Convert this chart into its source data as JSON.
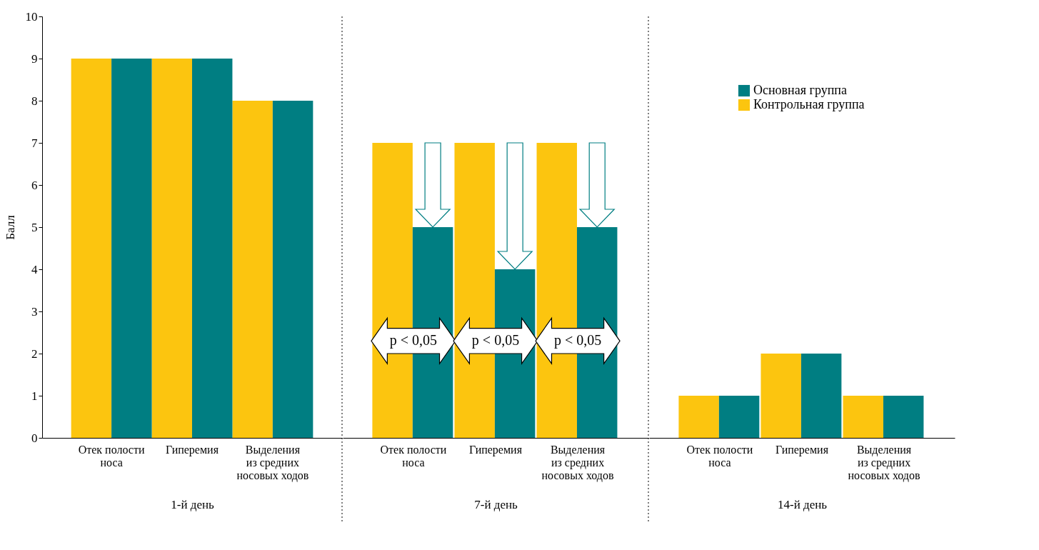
{
  "chart_data": [
    {
      "type": "bar",
      "xlabel": "1-й день",
      "ylabel": "Балл",
      "categories": [
        "Отек полости\nноса",
        "Гиперемия",
        "Выделения\nиз средних\nносовых ходов"
      ],
      "series": [
        {
          "color": "#fcc50f",
          "values": [
            9,
            9,
            8
          ]
        },
        {
          "color": "#007e82",
          "values": [
            9,
            9,
            8
          ]
        }
      ],
      "ylim": [
        0,
        10
      ],
      "yticks": [
        0,
        1,
        2,
        3,
        4,
        5,
        6,
        7,
        8,
        9,
        10
      ],
      "grid": false
    },
    {
      "type": "bar",
      "xlabel": "7-й день",
      "categories": [
        "Отек полости\nноса",
        "Гиперемия",
        "Выделения\nиз средних\nносовых ходов"
      ],
      "series": [
        {
          "color": "#fcc50f",
          "values": [
            7,
            7,
            7
          ]
        },
        {
          "color": "#007e82",
          "values": [
            5,
            4,
            5
          ]
        }
      ],
      "ylim": [
        0,
        10
      ],
      "yticks": [
        0,
        1,
        2,
        3,
        4,
        5,
        6,
        7,
        8,
        9,
        10
      ],
      "tick_labels": "x",
      "grid": false,
      "annotations": [
        {
          "text": "p < 0,05",
          "x": "Отек полости\nноса",
          "y": 2.3
        },
        {
          "text": "p < 0,05",
          "x": "Гиперемия",
          "y": 2.3
        },
        {
          "text": "p < 0,05",
          "x": "Выделения\nиз средних\nносовых ходов",
          "y": 2.3
        }
      ]
    },
    {
      "type": "bar",
      "xlabel": "14-й день",
      "categories": [
        "Отек полости\nноса",
        "Гиперемия",
        "Выделения\nиз средних\nносовых ходов"
      ],
      "series": [
        {
          "name": "Контрольная группа",
          "color": "#fcc50f",
          "values": [
            1,
            2,
            1
          ]
        },
        {
          "name": "Основная группа",
          "color": "#007e82",
          "values": [
            1,
            2,
            1
          ]
        }
      ],
      "ylim": [
        0,
        10
      ],
      "yticks": [
        0,
        1,
        2,
        3,
        4,
        5,
        6,
        7,
        8,
        9,
        10
      ],
      "tick_labels": "x",
      "grid": false,
      "legend": "top"
    }
  ]
}
